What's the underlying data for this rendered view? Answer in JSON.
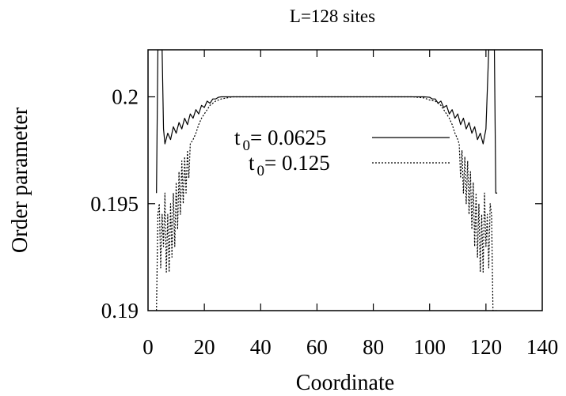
{
  "chart_data": {
    "type": "line",
    "title": "L=128 sites",
    "xlabel": "Coordinate",
    "ylabel": "Order parameter",
    "xlim": [
      0,
      140
    ],
    "ylim": [
      0.19,
      0.2022
    ],
    "x_ticks": [
      "0",
      "20",
      "40",
      "60",
      "80",
      "100",
      "120",
      "140"
    ],
    "y_ticks": [
      "0.19",
      "0.195",
      "0.2"
    ],
    "grid": false,
    "legend_position": "center-right",
    "series": [
      {
        "name_main": "t",
        "name_sub": "0",
        "name_value": "= 0.0625",
        "style": "solid",
        "color": "#000000",
        "x": [
          3,
          3.5,
          4,
          4.5,
          5,
          5.5,
          6,
          7,
          8,
          9,
          10,
          11,
          12,
          13,
          14,
          15,
          16,
          17,
          18,
          19,
          20,
          21,
          22,
          23,
          24,
          25,
          26,
          28,
          30,
          32,
          40,
          50,
          60,
          70,
          80,
          90,
          96,
          98,
          100,
          101,
          102,
          103,
          104,
          105,
          106,
          107,
          108,
          109,
          110,
          111,
          112,
          113,
          114,
          115,
          116,
          117,
          118,
          119,
          120,
          121,
          121.5,
          122,
          122.5,
          123,
          123.5,
          124
        ],
        "y": [
          0.1955,
          0.2022,
          0.2022,
          0.2022,
          0.2022,
          0.1985,
          0.1978,
          0.1983,
          0.198,
          0.1986,
          0.1983,
          0.1988,
          0.1985,
          0.199,
          0.1987,
          0.1992,
          0.199,
          0.1994,
          0.1992,
          0.1996,
          0.1995,
          0.1998,
          0.1997,
          0.1999,
          0.1999,
          0.19998,
          0.2,
          0.2,
          0.2,
          0.2,
          0.2,
          0.2,
          0.2,
          0.2,
          0.2,
          0.2,
          0.2,
          0.2,
          0.19998,
          0.1999,
          0.1999,
          0.1997,
          0.1998,
          0.1995,
          0.1996,
          0.1992,
          0.1994,
          0.199,
          0.1992,
          0.1987,
          0.199,
          0.1985,
          0.1988,
          0.1983,
          0.1986,
          0.198,
          0.1983,
          0.1978,
          0.1985,
          0.2022,
          0.2022,
          0.2022,
          0.2022,
          0.2022,
          0.1955,
          0.1955
        ]
      },
      {
        "name_main": "t",
        "name_sub": "0",
        "name_value": "= 0.125",
        "style": "dotted",
        "color": "#000000",
        "x": [
          3,
          3.5,
          4,
          4.5,
          5,
          5.5,
          6,
          6.5,
          7,
          7.5,
          8,
          8.5,
          9,
          9.5,
          10,
          10.5,
          11,
          11.5,
          12,
          12.5,
          13,
          13.5,
          14,
          14.5,
          15,
          16,
          17,
          18,
          19,
          20,
          21,
          22,
          23,
          24,
          25,
          26,
          28,
          30,
          34,
          40,
          60,
          80,
          94,
          98,
          100,
          102,
          103,
          104,
          105,
          106,
          107,
          108,
          109,
          110,
          110.5,
          111,
          111.5,
          112,
          112.5,
          113,
          113.5,
          114,
          114.5,
          115,
          115.5,
          116,
          116.5,
          117,
          117.5,
          118,
          118.5,
          119,
          119.5,
          120,
          120.5,
          121,
          121.5,
          122,
          122.5,
          123,
          124
        ],
        "y": [
          0.19,
          0.1945,
          0.195,
          0.192,
          0.1945,
          0.193,
          0.1955,
          0.1918,
          0.1945,
          0.1918,
          0.195,
          0.1925,
          0.1955,
          0.193,
          0.196,
          0.1938,
          0.1965,
          0.1945,
          0.197,
          0.195,
          0.1972,
          0.1955,
          0.1975,
          0.1962,
          0.1978,
          0.198,
          0.1983,
          0.1987,
          0.199,
          0.1992,
          0.1994,
          0.1996,
          0.1997,
          0.1998,
          0.19985,
          0.1999,
          0.19995,
          0.2,
          0.2,
          0.2,
          0.2,
          0.2,
          0.2,
          0.19995,
          0.19985,
          0.1998,
          0.1997,
          0.1996,
          0.1994,
          0.1992,
          0.199,
          0.1987,
          0.1983,
          0.198,
          0.1978,
          0.1962,
          0.1975,
          0.1955,
          0.1972,
          0.195,
          0.197,
          0.1945,
          0.1965,
          0.1938,
          0.196,
          0.193,
          0.1955,
          0.1925,
          0.195,
          0.1918,
          0.1945,
          0.1918,
          0.1955,
          0.193,
          0.1945,
          0.192,
          0.195,
          0.1945,
          0.19,
          0.19,
          0.19
        ]
      }
    ]
  }
}
